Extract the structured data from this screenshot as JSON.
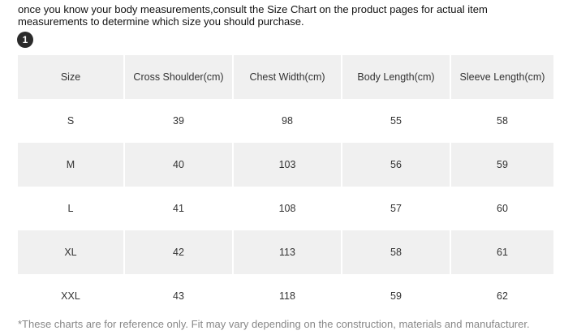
{
  "intro_text": "once you know your body measurements,consult the Size Chart on the product pages for actual item measurements to determine which size you should purchase.",
  "badge_number": "1",
  "table": {
    "headers": [
      "Size",
      "Cross Shoulder(cm)",
      "Chest Width(cm)",
      "Body Length(cm)",
      "Sleeve Length(cm)"
    ],
    "rows": [
      [
        "S",
        "39",
        "98",
        "55",
        "58"
      ],
      [
        "M",
        "40",
        "103",
        "56",
        "59"
      ],
      [
        "L",
        "41",
        "108",
        "57",
        "60"
      ],
      [
        "XL",
        "42",
        "113",
        "58",
        "61"
      ],
      [
        "XXL",
        "43",
        "118",
        "59",
        "62"
      ]
    ]
  },
  "footnote": "*These charts are for reference only. Fit may vary depending on the construction, materials and manufacturer.",
  "colors": {
    "shaded_row": "#f0f0f0",
    "badge": "#2b2b2b",
    "footnote_text": "#888888"
  }
}
